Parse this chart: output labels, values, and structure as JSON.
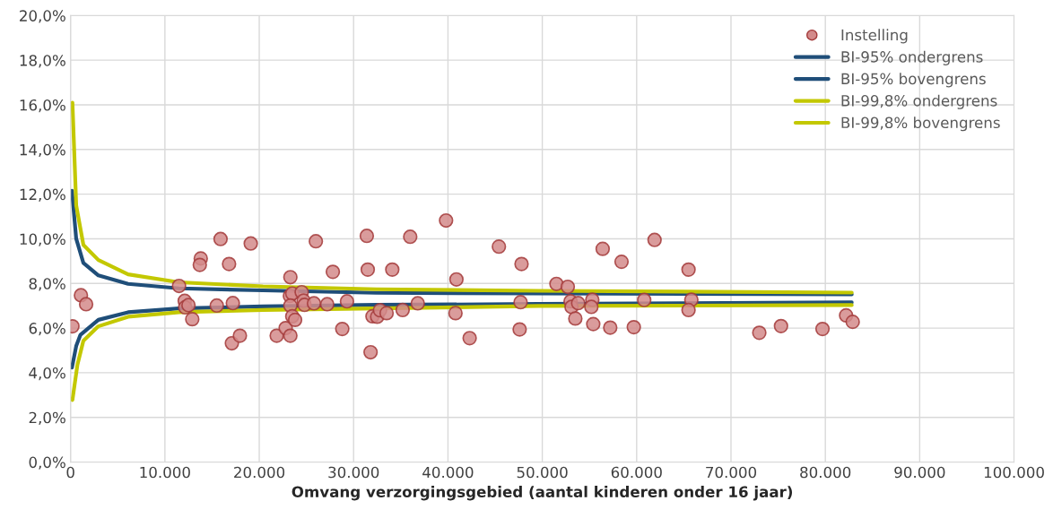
{
  "chart_data": {
    "type": "scatter",
    "xlabel": "Omvang verzorgingsgebied (aantal kinderen onder 16 jaar)",
    "xlim": [
      0,
      100000
    ],
    "ylim": [
      0,
      20
    ],
    "xticks": [
      {
        "value": 0,
        "label": "0"
      },
      {
        "value": 10000,
        "label": "10.000"
      },
      {
        "value": 20000,
        "label": "20.000"
      },
      {
        "value": 30000,
        "label": "30.000"
      },
      {
        "value": 40000,
        "label": "40.000"
      },
      {
        "value": 50000,
        "label": "50.000"
      },
      {
        "value": 60000,
        "label": "60.000"
      },
      {
        "value": 70000,
        "label": "70.000"
      },
      {
        "value": 80000,
        "label": "80.000"
      },
      {
        "value": 90000,
        "label": "90.000"
      },
      {
        "value": 100000,
        "label": "100.000"
      }
    ],
    "yticks": [
      {
        "value": 0,
        "label": "0,0%"
      },
      {
        "value": 2,
        "label": "2,0%"
      },
      {
        "value": 4,
        "label": "4,0%"
      },
      {
        "value": 6,
        "label": "6,0%"
      },
      {
        "value": 8,
        "label": "8,0%"
      },
      {
        "value": 10,
        "label": "10,0%"
      },
      {
        "value": 12,
        "label": "12,0%"
      },
      {
        "value": 14,
        "label": "14,0%"
      },
      {
        "value": 16,
        "label": "16,0%"
      },
      {
        "value": 18,
        "label": "18,0%"
      },
      {
        "value": 20,
        "label": "20,0%"
      }
    ],
    "grid": true,
    "legend": "top right",
    "series": [
      {
        "name": "Instelling",
        "marker": "circle",
        "color": "#d38b8b",
        "x": [
          200,
          1100,
          1650,
          11500,
          12100,
          12150,
          12500,
          12900,
          13800,
          13700,
          15500,
          15900,
          16800,
          17100,
          17200,
          17950,
          19100,
          21850,
          22800,
          23300,
          23300,
          23250,
          23500,
          23300,
          23500,
          23800,
          24500,
          24700,
          24800,
          25800,
          26000,
          27200,
          27800,
          28800,
          29300,
          31400,
          31500,
          31800,
          32000,
          32500,
          32800,
          33500,
          34100,
          35200,
          36000,
          36800,
          39800,
          40900,
          40800,
          42300,
          45400,
          47800,
          47700,
          47600,
          51500,
          52700,
          53000,
          53100,
          53800,
          53500,
          55300,
          55200,
          55400,
          56400,
          57200,
          58400,
          59700,
          60800,
          61900,
          65500,
          65800,
          65500,
          73000,
          75300,
          79700,
          82200,
          82900
        ],
        "values": [
          6.08,
          7.47,
          7.07,
          7.89,
          7.22,
          6.93,
          7.03,
          6.4,
          9.12,
          8.83,
          7.01,
          9.99,
          8.87,
          5.32,
          7.12,
          5.66,
          9.79,
          5.66,
          6.0,
          8.28,
          5.66,
          7.44,
          7.55,
          7.01,
          6.53,
          6.37,
          7.61,
          7.23,
          7.04,
          7.11,
          9.89,
          7.07,
          8.52,
          5.96,
          7.2,
          10.13,
          8.62,
          4.92,
          6.53,
          6.51,
          6.8,
          6.67,
          8.62,
          6.81,
          10.09,
          7.11,
          10.82,
          8.18,
          6.67,
          5.55,
          9.65,
          8.87,
          7.16,
          5.94,
          7.98,
          7.85,
          7.2,
          6.95,
          7.12,
          6.43,
          7.27,
          6.95,
          6.18,
          9.55,
          6.02,
          8.97,
          6.04,
          7.26,
          9.95,
          8.62,
          7.27,
          6.81,
          5.79,
          6.09,
          5.96,
          6.57,
          6.28
        ]
      },
      {
        "name": "BI-95% ondergrens",
        "type": "line",
        "marker": "none",
        "color": "#1f4e79",
        "x": [
          150,
          600,
          1050,
          2950,
          6100,
          11500,
          20400,
          32400,
          49600,
          82800
        ],
        "values": [
          4.23,
          5.2,
          5.7,
          6.37,
          6.71,
          6.88,
          6.97,
          7.04,
          7.08,
          7.15
        ]
      },
      {
        "name": "BI-95% bovengrens",
        "type": "line",
        "marker": "none",
        "color": "#1f4e79",
        "x": [
          150,
          600,
          1360,
          2950,
          6100,
          11500,
          20400,
          32400,
          49600,
          82800
        ],
        "values": [
          12.15,
          10.0,
          8.92,
          8.36,
          7.98,
          7.78,
          7.69,
          7.58,
          7.55,
          7.51
        ]
      },
      {
        "name": "BI-99,8% ondergrens",
        "type": "line",
        "marker": "none",
        "color": "#c3c800",
        "x": [
          200,
          730,
          1360,
          2950,
          6100,
          11500,
          20400,
          32400,
          49600,
          82800
        ],
        "values": [
          2.78,
          4.36,
          5.43,
          6.08,
          6.51,
          6.71,
          6.81,
          6.88,
          6.99,
          7.03
        ]
      },
      {
        "name": "BI-99,8% bovengrens",
        "type": "line",
        "marker": "none",
        "color": "#c3c800",
        "x": [
          200,
          600,
          1360,
          2950,
          6100,
          11500,
          20400,
          32400,
          49600,
          82800
        ],
        "values": [
          16.1,
          11.5,
          9.73,
          9.05,
          8.41,
          8.05,
          7.87,
          7.74,
          7.67,
          7.59
        ]
      }
    ]
  }
}
